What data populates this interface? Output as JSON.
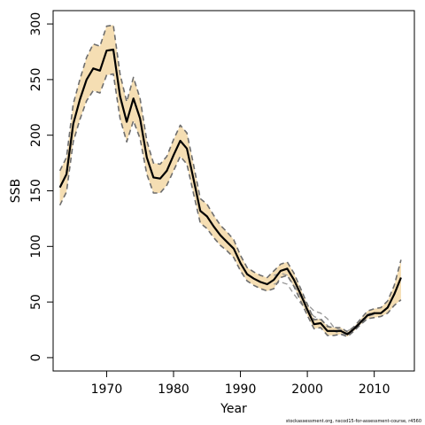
{
  "chart_data": {
    "type": "line",
    "xlabel": "Year",
    "ylabel": "SSB",
    "xlim": [
      1962,
      2016
    ],
    "ylim": [
      -12,
      312
    ],
    "xticks": [
      1970,
      1980,
      1990,
      2000,
      2010
    ],
    "yticks": [
      0,
      50,
      100,
      150,
      200,
      250,
      300
    ],
    "grid": false,
    "footnote": "stockassessment.org, nscod15-for-assessment-course, r4560",
    "colors": {
      "band": "#f5deb3",
      "estimate": "#000000",
      "ci_main": "#6e6e6e",
      "ci_alt": "#9a9a9a"
    },
    "years": [
      1963,
      1964,
      1965,
      1966,
      1967,
      1968,
      1969,
      1970,
      1971,
      1972,
      1973,
      1974,
      1975,
      1976,
      1977,
      1978,
      1979,
      1980,
      1981,
      1982,
      1983,
      1984,
      1985,
      1986,
      1987,
      1988,
      1989,
      1990,
      1991,
      1992,
      1993,
      1994,
      1995,
      1996,
      1997,
      1998,
      1999,
      2000,
      2001,
      2002,
      2003,
      2004,
      2005,
      2006,
      2007,
      2008,
      2009,
      2010,
      2011,
      2012,
      2013,
      2014
    ],
    "series": [
      {
        "role": "estimate",
        "style": "solid",
        "values": [
          153,
          165,
          210,
          232,
          250,
          260,
          258,
          276,
          277,
          235,
          212,
          233,
          215,
          180,
          162,
          161,
          168,
          182,
          195,
          188,
          160,
          132,
          127,
          118,
          110,
          104,
          98,
          85,
          75,
          71,
          68,
          66,
          70,
          78,
          80,
          70,
          57,
          43,
          30,
          31,
          24,
          24,
          24,
          21,
          26,
          32,
          38,
          40,
          40,
          45,
          57,
          72
        ]
      },
      {
        "role": "upper_ci",
        "style": "dashed",
        "values": [
          168,
          180,
          228,
          250,
          270,
          282,
          280,
          298,
          299,
          255,
          230,
          252,
          233,
          195,
          175,
          174,
          181,
          196,
          209,
          202,
          173,
          143,
          138,
          128,
          119,
          113,
          106,
          92,
          81,
          77,
          74,
          72,
          78,
          84,
          86,
          76,
          62,
          48,
          34,
          35,
          28,
          27,
          27,
          23,
          28,
          35,
          42,
          44,
          45,
          51,
          65,
          88
        ]
      },
      {
        "role": "lower_ci",
        "style": "dashed",
        "values": [
          137,
          149,
          194,
          214,
          231,
          240,
          238,
          254,
          255,
          215,
          194,
          213,
          197,
          165,
          148,
          148,
          155,
          168,
          181,
          174,
          147,
          121,
          116,
          108,
          101,
          96,
          90,
          78,
          69,
          65,
          62,
          60,
          62,
          72,
          74,
          64,
          51,
          38,
          26,
          27,
          20,
          20,
          21,
          19,
          24,
          30,
          35,
          36,
          37,
          40,
          47,
          52
        ]
      },
      {
        "role": "alt_upper_ci",
        "style": "dashed",
        "x_from": 1995,
        "values": [
          74,
          76,
          74,
          65,
          55,
          48,
          42,
          40,
          35,
          27,
          25,
          24,
          27,
          33,
          39,
          41
        ]
      },
      {
        "role": "alt_lower_ci",
        "style": "dashed",
        "x_from": 1995,
        "values": [
          66,
          68,
          66,
          57,
          49,
          43,
          37,
          34,
          29,
          24,
          21,
          21,
          25,
          31,
          37,
          39
        ]
      }
    ]
  }
}
